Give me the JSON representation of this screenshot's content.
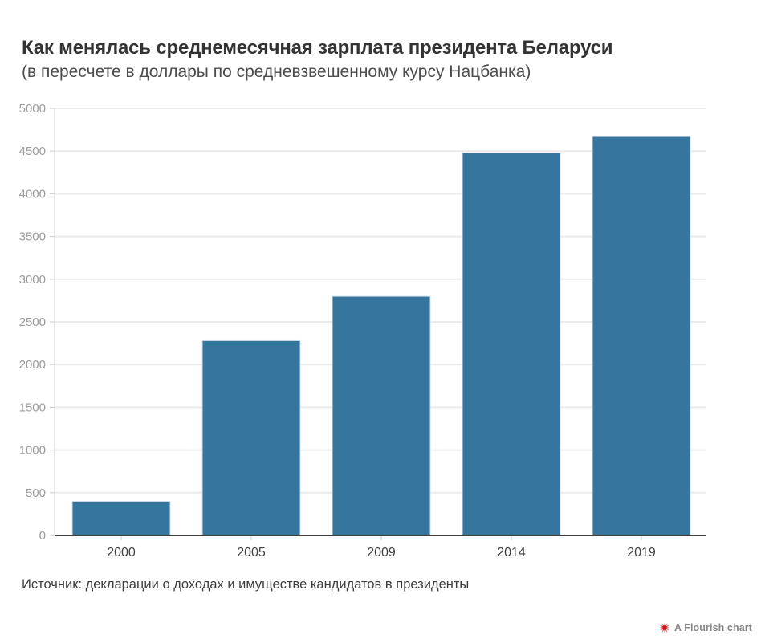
{
  "header": {
    "title": "Как менялась среднемесячная зарплата президента Беларуси",
    "subtitle": "(в пересчете в доллары по средневзвешенному курсу Нацбанка)"
  },
  "footer": {
    "source": "Источник: декларации о доходах и имуществе кандидатов в президенты",
    "attribution": "A Flourish chart"
  },
  "colors": {
    "bar": "#35759e",
    "bar_stroke": "#d2dfe9",
    "gridline": "#ebebeb",
    "axis_line": "#cccccc",
    "tick": "#cccccc",
    "baseline": "#404040",
    "y_label": "#9c9c9c",
    "x_label": "#404040",
    "attribution_icon": "#d0151d"
  },
  "chart_data": {
    "type": "bar",
    "title": "Как менялась среднемесячная зарплата президента Беларуси",
    "subtitle": "(в пересчете в доллары по средневзвешенному курсу Нацбанка)",
    "categories": [
      "2000",
      "2005",
      "2009",
      "2014",
      "2019"
    ],
    "values": [
      400,
      2280,
      2800,
      4480,
      4670
    ],
    "xlabel": "",
    "ylabel": "",
    "ylim": [
      0,
      5000
    ],
    "ytick_step": 500,
    "grid": true,
    "legend": "none",
    "source": "Источник: декларации о доходах и имуществе кандидатов в президенты"
  }
}
